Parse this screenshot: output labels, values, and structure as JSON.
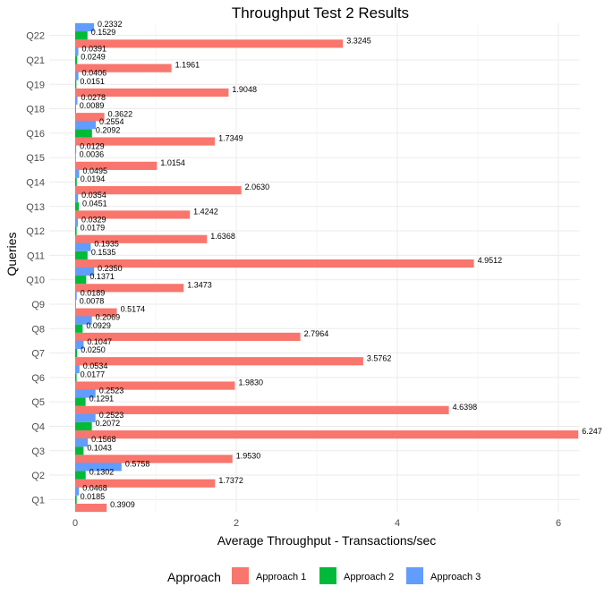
{
  "chart_data": {
    "type": "bar",
    "orientation": "horizontal",
    "title": "Throughput Test 2 Results",
    "xlabel": "Average Throughput - Transactions/sec",
    "ylabel": "Queries",
    "xlim": [
      0,
      6.5
    ],
    "x_ticks": [
      0,
      2,
      4,
      6
    ],
    "grid": true,
    "legend_position": "bottom",
    "legend_title": "Approach",
    "categories": [
      "Q1",
      "Q2",
      "Q3",
      "Q4",
      "Q5",
      "Q6",
      "Q7",
      "Q8",
      "Q9",
      "Q10",
      "Q11",
      "Q12",
      "Q13",
      "Q14",
      "Q15",
      "Q16",
      "Q18",
      "Q19",
      "Q21",
      "Q22"
    ],
    "series": [
      {
        "name": "Approach 1",
        "color": "#F8766D",
        "values": [
          0.3909,
          1.7372,
          1.953,
          6.247,
          4.6398,
          1.983,
          3.5762,
          2.7964,
          0.5174,
          1.3473,
          4.9512,
          1.6368,
          1.4242,
          2.063,
          1.0154,
          1.7349,
          0.3622,
          1.9048,
          1.1961,
          3.3245
        ],
        "labels": [
          "0.3909",
          "1.7372",
          "1.9530",
          "6.247",
          "4.6398",
          "1.9830",
          "3.5762",
          "2.7964",
          "0.5174",
          "1.3473",
          "4.9512",
          "1.6368",
          "1.4242",
          "2.0630",
          "1.0154",
          "1.7349",
          "0.3622",
          "1.9048",
          "1.1961",
          "3.3245"
        ]
      },
      {
        "name": "Approach 2",
        "color": "#00BA38",
        "values": [
          0.0185,
          0.1302,
          0.1043,
          0.2072,
          0.1291,
          0.0177,
          0.025,
          0.0929,
          0.0078,
          0.1371,
          0.1535,
          0.0179,
          0.0451,
          0.0194,
          0.0036,
          0.2092,
          0.0089,
          0.0151,
          0.0249,
          0.1529
        ],
        "labels": [
          "0.0185",
          "0.1302",
          "0.1043",
          "0.2072",
          "0.1291",
          "0.0177",
          "0.0250",
          "0.0929",
          "0.0078",
          "0.1371",
          "0.1535",
          "0.0179",
          "0.0451",
          "0.0194",
          "0.0036",
          "0.2092",
          "0.0089",
          "0.0151",
          "0.0249",
          "0.1529"
        ]
      },
      {
        "name": "Approach 3",
        "color": "#619CFF",
        "values": [
          0.0468,
          0.5758,
          0.1568,
          0.2523,
          0.2523,
          0.0534,
          0.1047,
          0.2069,
          0.0189,
          0.235,
          0.1935,
          0.0329,
          0.0354,
          0.0495,
          0.0129,
          0.2554,
          0.0278,
          0.0406,
          0.0391,
          0.2332
        ],
        "labels": [
          "0.0468",
          "0.5758",
          "0.1568",
          "0.2523",
          "0.2523",
          "0.0534",
          "0.1047",
          "0.2069",
          "0.0189",
          "0.2350",
          "0.1935",
          "0.0329",
          "0.0354",
          "0.0495",
          "0.0129",
          "0.2554",
          "0.0278",
          "0.0406",
          "0.0391",
          "0.2332"
        ]
      }
    ]
  }
}
